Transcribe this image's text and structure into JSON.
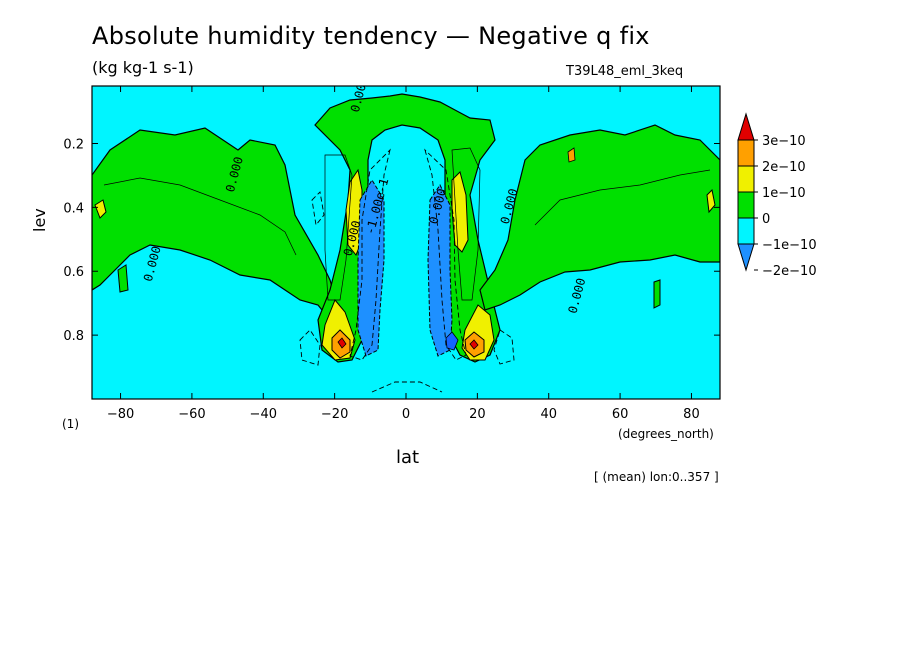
{
  "figure": {
    "title": "Absolute humidity tendency — Negative q fix",
    "units": "(kg kg-1 s-1)",
    "run_name": "T39L48_eml_3keq",
    "footnote": "[ (mean) lon:0..357 ]",
    "y_unit_note": "(1)",
    "x_units": "(degrees_north)"
  },
  "chart_data": {
    "type": "heatmap",
    "xlabel": "lat",
    "ylabel": "lev",
    "xlim": [
      -88,
      88
    ],
    "ylim": [
      1.0,
      0.02
    ],
    "x_ticks": [
      -80,
      -60,
      -40,
      -20,
      0,
      20,
      40,
      60,
      80
    ],
    "x_tick_labels": [
      "−80",
      "−60",
      "−40",
      "−20",
      "0",
      "20",
      "40",
      "60",
      "80"
    ],
    "y_ticks": [
      0.2,
      0.4,
      0.6,
      0.8
    ],
    "y_tick_labels": [
      "0.2",
      "0.4",
      "0.6",
      "0.8"
    ],
    "colorbar": {
      "levels": [
        -2e-10,
        -1e-10,
        0,
        1e-10,
        2e-10,
        3e-10
      ],
      "labels": [
        "−2e−10",
        "−1e−10",
        "0",
        "1e−10",
        "2e−10",
        "3e−10"
      ],
      "colors": [
        "#1e90ff",
        "#00f5ff",
        "#00e000",
        "#f0f000",
        "#ffa000",
        "#e00000"
      ],
      "extend": "both"
    },
    "contour_labels": [
      {
        "text": "0.000",
        "lat": -47,
        "lev": 0.3
      },
      {
        "text": "0.000",
        "lat": -14,
        "lev": 0.5
      },
      {
        "text": "0.000",
        "lat": -70,
        "lev": 0.58
      },
      {
        "text": "0.000",
        "lat": -12,
        "lev": 0.05
      },
      {
        "text": "0.000",
        "lat": 30,
        "lev": 0.4
      },
      {
        "text": "0.000",
        "lat": 49,
        "lev": 0.68
      },
      {
        "text": "-1.00e-1",
        "lat": -7,
        "lev": 0.4
      },
      {
        "text": "0.000",
        "lat": 10,
        "lev": 0.4
      }
    ],
    "regions_description_values": {
      "background": -5e-11,
      "stratosphere_tropics": -5e-11,
      "extratropical_upper": 5e-11,
      "subtropical_bands": 5e-11,
      "subtropical_maxima": 1.5e-10,
      "low_level_peaks": 2.5e-10,
      "equatorial_minima": -1.5e-10
    }
  }
}
